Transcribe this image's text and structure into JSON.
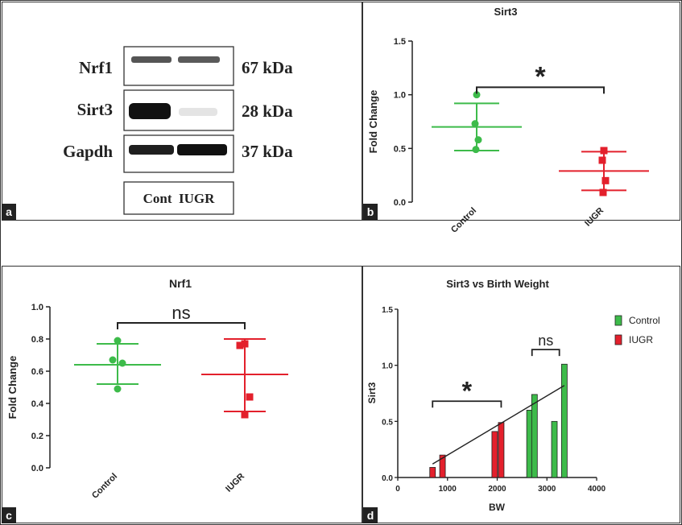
{
  "panel_labels": {
    "a": "a",
    "b": "b",
    "c": "c",
    "d": "d"
  },
  "colors": {
    "control": "#3dbb4a",
    "iugr": "#e3202c",
    "axis": "#222222"
  },
  "blot": {
    "rows": [
      {
        "name": "Nrf1",
        "size": "67 kDa"
      },
      {
        "name": "Sirt3",
        "size": "28 kDa"
      },
      {
        "name": "Gapdh",
        "size": "37 kDa"
      }
    ],
    "lanes_label": "Cont  IUGR"
  },
  "chart_data": [
    {
      "id": "b",
      "type": "scatter",
      "title": "Sirt3",
      "ylabel": "Fold Change",
      "xlabel": "",
      "ylim": [
        0,
        1.5
      ],
      "yticks": [
        "0.0",
        "0.5",
        "1.0",
        "1.5"
      ],
      "categories": [
        "Control",
        "IUGR"
      ],
      "series": [
        {
          "name": "Control",
          "color": "#3dbb4a",
          "marker": "circle",
          "points": [
            1.0,
            0.73,
            0.58,
            0.49
          ],
          "mean": 0.7,
          "sd_low": 0.48,
          "sd_high": 0.92
        },
        {
          "name": "IUGR",
          "color": "#e3202c",
          "marker": "square",
          "points": [
            0.48,
            0.39,
            0.2,
            0.09
          ],
          "mean": 0.29,
          "sd_low": 0.11,
          "sd_high": 0.47
        }
      ],
      "significance": {
        "label": "*",
        "y": 1.07
      }
    },
    {
      "id": "c",
      "type": "scatter",
      "title": "Nrf1",
      "ylabel": "Fold Change",
      "xlabel": "",
      "ylim": [
        0,
        1.0
      ],
      "yticks": [
        "0.0",
        "0.2",
        "0.4",
        "0.6",
        "0.8",
        "1.0"
      ],
      "categories": [
        "Control",
        "IUGR"
      ],
      "series": [
        {
          "name": "Control",
          "color": "#3dbb4a",
          "marker": "circle",
          "points": [
            0.79,
            0.67,
            0.65,
            0.49
          ],
          "mean": 0.64,
          "sd_low": 0.52,
          "sd_high": 0.77
        },
        {
          "name": "IUGR",
          "color": "#e3202c",
          "marker": "square",
          "points": [
            0.77,
            0.76,
            0.44,
            0.33
          ],
          "mean": 0.58,
          "sd_low": 0.35,
          "sd_high": 0.8
        }
      ],
      "significance": {
        "label": "ns",
        "y": 0.9
      }
    },
    {
      "id": "d",
      "type": "bar",
      "title": "Sirt3 vs Birth Weight",
      "xlabel": "BW",
      "ylabel": "Sirt3",
      "xlim": [
        0,
        4000
      ],
      "ylim": [
        0,
        1.5
      ],
      "xticks": [
        "0",
        "1000",
        "2000",
        "3000",
        "4000"
      ],
      "yticks": [
        "0.0",
        "0.5",
        "1.0",
        "1.5"
      ],
      "series": [
        {
          "name": "Control",
          "color": "#3dbb4a",
          "bars": [
            {
              "x": 2650,
              "y": 0.6
            },
            {
              "x": 2750,
              "y": 0.74
            },
            {
              "x": 3150,
              "y": 0.5
            },
            {
              "x": 3350,
              "y": 1.01
            }
          ]
        },
        {
          "name": "IUGR",
          "color": "#e3202c",
          "bars": [
            {
              "x": 700,
              "y": 0.09
            },
            {
              "x": 900,
              "y": 0.2
            },
            {
              "x": 1950,
              "y": 0.41
            },
            {
              "x": 2080,
              "y": 0.49
            }
          ]
        }
      ],
      "trendline": {
        "x1": 700,
        "y1": 0.12,
        "x2": 3350,
        "y2": 0.82
      },
      "brackets": [
        {
          "label": "*",
          "x1": 700,
          "x2": 2080,
          "y": 0.68
        },
        {
          "label": "ns",
          "x1": 2700,
          "x2": 3250,
          "y": 1.14
        }
      ],
      "legend": [
        {
          "label": "Control",
          "color": "#3dbb4a"
        },
        {
          "label": "IUGR",
          "color": "#e3202c"
        }
      ]
    }
  ]
}
